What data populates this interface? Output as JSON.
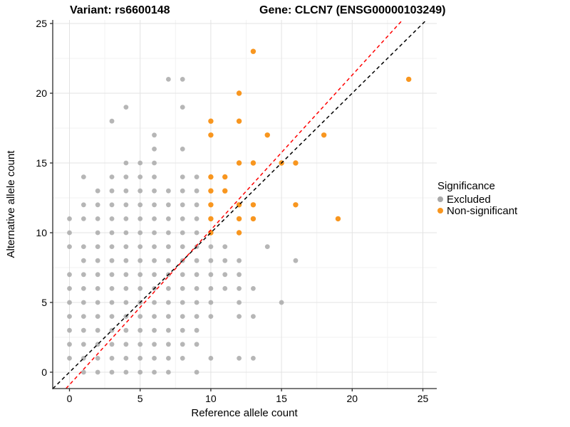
{
  "title": {
    "variant": "Variant: rs6600148",
    "gene": "Gene: CLCN7 (ENSG00000103249)"
  },
  "axes": {
    "x_label": "Reference allele count",
    "y_label": "Alternative allele count",
    "x_ticks": [
      0,
      5,
      10,
      15,
      20,
      25
    ],
    "y_ticks": [
      0,
      5,
      10,
      15,
      20,
      25
    ]
  },
  "legend": {
    "title": "Significance",
    "items": [
      {
        "label": "Excluded",
        "color": "#a9a9a9"
      },
      {
        "label": "Non-significant",
        "color": "#f8961f"
      }
    ]
  },
  "chart_data": {
    "type": "scatter",
    "title": "Variant: rs6600148   Gene: CLCN7 (ENSG00000103249)",
    "xlabel": "Reference allele count",
    "ylabel": "Alternative allele count",
    "xlim": [
      -1.2,
      26.0
    ],
    "ylim": [
      -1.2,
      25.3
    ],
    "grid": "major+minor",
    "legend_position": "right",
    "series": [
      {
        "name": "Excluded",
        "color": "#a9a9a9",
        "opacity": 0.85,
        "radius": 3.4,
        "points": [
          [
            1,
            0
          ],
          [
            2,
            0
          ],
          [
            3,
            0
          ],
          [
            4,
            0
          ],
          [
            5,
            0
          ],
          [
            6,
            0
          ],
          [
            7,
            0
          ],
          [
            9,
            0
          ],
          [
            0,
            1
          ],
          [
            1,
            1
          ],
          [
            2,
            1
          ],
          [
            3,
            1
          ],
          [
            4,
            1
          ],
          [
            5,
            1
          ],
          [
            6,
            1
          ],
          [
            7,
            1
          ],
          [
            8,
            1
          ],
          [
            10,
            1
          ],
          [
            12,
            1
          ],
          [
            13,
            1
          ],
          [
            0,
            2
          ],
          [
            1,
            2
          ],
          [
            2,
            2
          ],
          [
            3,
            2
          ],
          [
            4,
            2
          ],
          [
            5,
            2
          ],
          [
            6,
            2
          ],
          [
            7,
            2
          ],
          [
            8,
            2
          ],
          [
            9,
            2
          ],
          [
            0,
            3
          ],
          [
            1,
            3
          ],
          [
            2,
            3
          ],
          [
            3,
            3
          ],
          [
            4,
            3
          ],
          [
            5,
            3
          ],
          [
            6,
            3
          ],
          [
            7,
            3
          ],
          [
            8,
            3
          ],
          [
            9,
            3
          ],
          [
            0,
            4
          ],
          [
            1,
            4
          ],
          [
            2,
            4
          ],
          [
            3,
            4
          ],
          [
            4,
            4
          ],
          [
            5,
            4
          ],
          [
            6,
            4
          ],
          [
            7,
            4
          ],
          [
            8,
            4
          ],
          [
            9,
            4
          ],
          [
            10,
            4
          ],
          [
            12,
            4
          ],
          [
            13,
            4
          ],
          [
            0,
            5
          ],
          [
            1,
            5
          ],
          [
            2,
            5
          ],
          [
            3,
            5
          ],
          [
            4,
            5
          ],
          [
            5,
            5
          ],
          [
            6,
            5
          ],
          [
            7,
            5
          ],
          [
            8,
            5
          ],
          [
            9,
            5
          ],
          [
            10,
            5
          ],
          [
            12,
            5
          ],
          [
            15,
            5
          ],
          [
            0,
            6
          ],
          [
            1,
            6
          ],
          [
            2,
            6
          ],
          [
            3,
            6
          ],
          [
            4,
            6
          ],
          [
            5,
            6
          ],
          [
            6,
            6
          ],
          [
            7,
            6
          ],
          [
            8,
            6
          ],
          [
            9,
            6
          ],
          [
            10,
            6
          ],
          [
            11,
            6
          ],
          [
            12,
            6
          ],
          [
            13,
            6
          ],
          [
            0,
            7
          ],
          [
            1,
            7
          ],
          [
            2,
            7
          ],
          [
            3,
            7
          ],
          [
            4,
            7
          ],
          [
            5,
            7
          ],
          [
            6,
            7
          ],
          [
            7,
            7
          ],
          [
            8,
            7
          ],
          [
            9,
            7
          ],
          [
            10,
            7
          ],
          [
            11,
            7
          ],
          [
            12,
            7
          ],
          [
            1,
            8
          ],
          [
            2,
            8
          ],
          [
            3,
            8
          ],
          [
            4,
            8
          ],
          [
            5,
            8
          ],
          [
            6,
            8
          ],
          [
            7,
            8
          ],
          [
            8,
            8
          ],
          [
            9,
            8
          ],
          [
            10,
            8
          ],
          [
            11,
            8
          ],
          [
            12,
            8
          ],
          [
            16,
            8
          ],
          [
            0,
            9
          ],
          [
            1,
            9
          ],
          [
            2,
            9
          ],
          [
            3,
            9
          ],
          [
            4,
            9
          ],
          [
            5,
            9
          ],
          [
            6,
            9
          ],
          [
            7,
            9
          ],
          [
            8,
            9
          ],
          [
            9,
            9
          ],
          [
            10,
            9
          ],
          [
            11,
            9
          ],
          [
            14,
            9
          ],
          [
            0,
            10
          ],
          [
            2,
            10
          ],
          [
            3,
            10
          ],
          [
            4,
            10
          ],
          [
            5,
            10
          ],
          [
            6,
            10
          ],
          [
            7,
            10
          ],
          [
            8,
            10
          ],
          [
            9,
            10
          ],
          [
            0,
            11
          ],
          [
            1,
            11
          ],
          [
            2,
            11
          ],
          [
            3,
            11
          ],
          [
            4,
            11
          ],
          [
            5,
            11
          ],
          [
            6,
            11
          ],
          [
            7,
            11
          ],
          [
            8,
            11
          ],
          [
            9,
            11
          ],
          [
            1,
            12
          ],
          [
            2,
            12
          ],
          [
            3,
            12
          ],
          [
            4,
            12
          ],
          [
            5,
            12
          ],
          [
            6,
            12
          ],
          [
            7,
            12
          ],
          [
            8,
            12
          ],
          [
            9,
            12
          ],
          [
            2,
            13
          ],
          [
            3,
            13
          ],
          [
            4,
            13
          ],
          [
            5,
            13
          ],
          [
            6,
            13
          ],
          [
            7,
            13
          ],
          [
            8,
            13
          ],
          [
            9,
            13
          ],
          [
            1,
            14
          ],
          [
            3,
            14
          ],
          [
            4,
            14
          ],
          [
            5,
            14
          ],
          [
            6,
            14
          ],
          [
            8,
            14
          ],
          [
            9,
            14
          ],
          [
            4,
            15
          ],
          [
            5,
            15
          ],
          [
            6,
            15
          ],
          [
            6,
            16
          ],
          [
            8,
            16
          ],
          [
            6,
            17
          ],
          [
            3,
            18
          ],
          [
            4,
            19
          ],
          [
            8,
            19
          ],
          [
            7,
            21
          ],
          [
            8,
            21
          ]
        ]
      },
      {
        "name": "Non-significant",
        "color": "#f8961f",
        "opacity": 1,
        "radius": 3.7,
        "points": [
          [
            10,
            10
          ],
          [
            12,
            10
          ],
          [
            10,
            11
          ],
          [
            12,
            11
          ],
          [
            13,
            11
          ],
          [
            19,
            11
          ],
          [
            10,
            12
          ],
          [
            12,
            12
          ],
          [
            13,
            12
          ],
          [
            16,
            12
          ],
          [
            10,
            13
          ],
          [
            11,
            13
          ],
          [
            10,
            14
          ],
          [
            11,
            14
          ],
          [
            12,
            15
          ],
          [
            13,
            15
          ],
          [
            15,
            15
          ],
          [
            16,
            15
          ],
          [
            10,
            17
          ],
          [
            14,
            17
          ],
          [
            18,
            17
          ],
          [
            10,
            18
          ],
          [
            12,
            18
          ],
          [
            12,
            20
          ],
          [
            24,
            21
          ],
          [
            13,
            23
          ]
        ]
      }
    ],
    "lines": [
      {
        "name": "identity-line",
        "color": "#000000",
        "style": "dashed",
        "slope": 1.0,
        "intercept": 0.0
      },
      {
        "name": "fit-line",
        "color": "#ff0000",
        "style": "dashed",
        "slope": 1.11,
        "intercept": -0.9
      }
    ]
  }
}
